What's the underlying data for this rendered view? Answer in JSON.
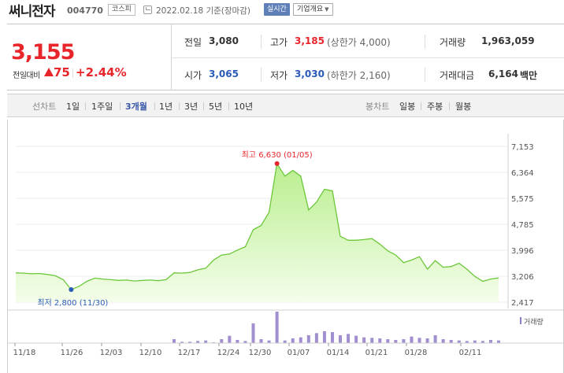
{
  "header": {
    "name": "써니전자",
    "code": "004770",
    "market": "코스피",
    "date": "2022.02.18 기준(장마감)",
    "realtime": "실시간",
    "company_info": "기업개요"
  },
  "summary": {
    "price": "3,155",
    "diff_label": "전일대비",
    "diff_value": "75",
    "diff_pct": "+2.44%",
    "stats": [
      {
        "label": "전일",
        "value": "3,080",
        "value_color": "#333333",
        "extra": ""
      },
      {
        "label": "고가",
        "value": "3,185",
        "value_color": "#e8252b",
        "extra": "(상한가 4,000)"
      },
      {
        "label": "거래량",
        "value": "1,963,059",
        "value_color": "#333333",
        "extra": ""
      },
      {
        "label": "시가",
        "value": "3,065",
        "value_color": "#2a5bb7",
        "extra": ""
      },
      {
        "label": "저가",
        "value": "3,030",
        "value_color": "#2a5bb7",
        "extra": "(하한가 2,160)"
      },
      {
        "label": "거래대금",
        "value": "6,164",
        "value_color": "#333333",
        "extra": "백만"
      }
    ]
  },
  "period": {
    "line_label": "선차트",
    "line_periods": [
      "1일",
      "1주일",
      "3개월",
      "1년",
      "3년",
      "5년",
      "10년"
    ],
    "active": "3개월",
    "candle_label": "봉차트",
    "candle_periods": [
      "일봉",
      "주봉",
      "월봉"
    ]
  },
  "chart_data": {
    "type": "area",
    "y_ticks": [
      "7,153",
      "6,364",
      "5,575",
      "4,785",
      "3,996",
      "3,206",
      "2,417"
    ],
    "ylim": [
      2417,
      7153
    ],
    "x_ticks": [
      "11/18",
      "11/26",
      "12/03",
      "12/10",
      "12/17",
      "12/24",
      "12/30",
      "01/07",
      "01/14",
      "01/21",
      "01/28",
      "02/11"
    ],
    "high_label": "최고 6,630 (01/05)",
    "low_label": "최저 2,800 (11/30)",
    "volume_label": "거래량",
    "prices": [
      3310,
      3300,
      3280,
      3290,
      3260,
      3220,
      3100,
      2800,
      2900,
      3050,
      3150,
      3120,
      3100,
      3080,
      3090,
      3060,
      3080,
      3090,
      3070,
      3100,
      3310,
      3300,
      3320,
      3400,
      3450,
      3700,
      3850,
      3880,
      4000,
      4100,
      4620,
      4750,
      5150,
      6630,
      6250,
      6420,
      6250,
      5220,
      5460,
      5850,
      5800,
      4420,
      4300,
      4300,
      4320,
      4350,
      4180,
      3980,
      3850,
      3620,
      3700,
      3800,
      3420,
      3680,
      3480,
      3500,
      3600,
      3420,
      3200,
      3050,
      3120,
      3155
    ],
    "volumes": [
      0,
      0,
      0,
      0,
      0,
      0,
      0,
      0,
      0,
      0,
      0,
      0,
      0,
      0,
      0,
      0,
      0,
      0,
      0,
      0,
      15,
      5,
      5,
      8,
      10,
      3,
      15,
      28,
      12,
      8,
      75,
      15,
      10,
      120,
      10,
      18,
      22,
      30,
      38,
      45,
      42,
      30,
      35,
      28,
      22,
      20,
      18,
      15,
      12,
      15,
      25,
      20,
      18,
      30,
      15,
      12,
      10,
      8,
      10,
      8,
      12,
      10
    ]
  }
}
